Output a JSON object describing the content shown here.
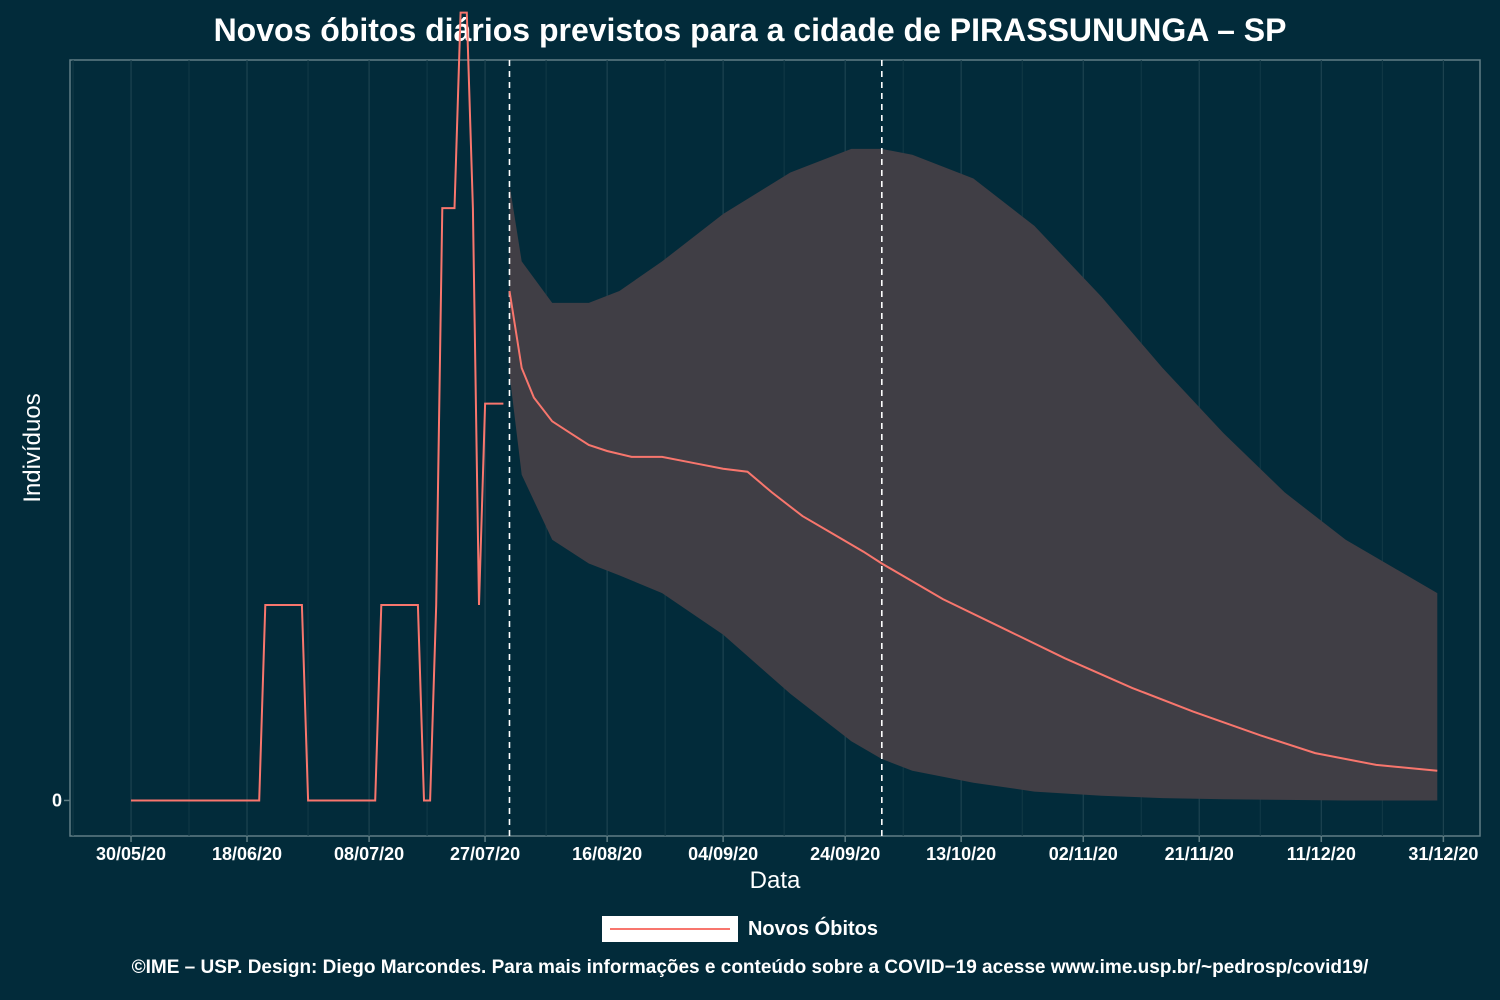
{
  "title": "Novos óbitos diários previstos para a cidade de PIRASSUNUNGA – SP",
  "footer": "©IME – USP. Design: Diego Marcondes. Para mais informações e conteúdo sobre a COVID−19 acesse www.ime.usp.br/~pedrosp/covid19/",
  "legend": {
    "label": "Novos Óbitos"
  },
  "colors": {
    "background": "#022b3a",
    "line": "#f8766d",
    "band": "#403e45",
    "text": "#ffffff"
  },
  "chart_data": {
    "type": "line",
    "xlabel": "Data",
    "ylabel": "Indivíduos",
    "x_ticks": [
      "30/05/20",
      "18/06/20",
      "08/07/20",
      "27/07/20",
      "16/08/20",
      "04/09/20",
      "24/09/20",
      "13/10/20",
      "02/11/20",
      "21/11/20",
      "11/12/20",
      "31/12/20"
    ],
    "y_ticks": [
      "0"
    ],
    "x_range": [
      "2020-05-20",
      "2021-01-06"
    ],
    "y_range": [
      -0.06,
      1.25
    ],
    "vertical_reference_lines": [
      "2020-07-31",
      "2020-09-30"
    ],
    "grid": true,
    "legend_position": "bottom",
    "series": [
      {
        "name": "Novos Óbitos",
        "role": "observed",
        "x": [
          "2020-05-30",
          "2020-06-20",
          "2020-06-21",
          "2020-06-27",
          "2020-06-28",
          "2020-07-09",
          "2020-07-10",
          "2020-07-16",
          "2020-07-17",
          "2020-07-18",
          "2020-07-19",
          "2020-07-20",
          "2020-07-22",
          "2020-07-23",
          "2020-07-24",
          "2020-07-25",
          "2020-07-26",
          "2020-07-27",
          "2020-07-28",
          "2020-07-29",
          "2020-07-30"
        ],
        "y": [
          0,
          0,
          0.33,
          0.33,
          0,
          0,
          0.33,
          0.33,
          0,
          0,
          0.33,
          1,
          1,
          1.33,
          1.33,
          1,
          0.33,
          0.67,
          0.67,
          0.67,
          0.67
        ]
      },
      {
        "name": "Novos Óbitos",
        "role": "predicted",
        "x": [
          "2020-07-31",
          "2020-08-02",
          "2020-08-04",
          "2020-08-07",
          "2020-08-10",
          "2020-08-13",
          "2020-08-16",
          "2020-08-20",
          "2020-08-25",
          "2020-08-30",
          "2020-09-04",
          "2020-09-08",
          "2020-09-12",
          "2020-09-17",
          "2020-09-22",
          "2020-09-27",
          "2020-09-30",
          "2020-10-05",
          "2020-10-10",
          "2020-10-20",
          "2020-10-30",
          "2020-11-10",
          "2020-11-20",
          "2020-12-01",
          "2020-12-10",
          "2020-12-20",
          "2020-12-30"
        ],
        "y": [
          0.86,
          0.73,
          0.68,
          0.64,
          0.62,
          0.6,
          0.59,
          0.58,
          0.58,
          0.57,
          0.56,
          0.555,
          0.52,
          0.48,
          0.45,
          0.42,
          0.4,
          0.37,
          0.34,
          0.29,
          0.24,
          0.19,
          0.15,
          0.11,
          0.08,
          0.06,
          0.05
        ]
      }
    ],
    "band": {
      "name": "intervalo de previsão",
      "x": [
        "2020-07-31",
        "2020-08-02",
        "2020-08-07",
        "2020-08-13",
        "2020-08-18",
        "2020-08-25",
        "2020-09-04",
        "2020-09-15",
        "2020-09-25",
        "2020-09-30",
        "2020-10-05",
        "2020-10-15",
        "2020-10-25",
        "2020-11-05",
        "2020-11-15",
        "2020-11-25",
        "2020-12-05",
        "2020-12-15",
        "2020-12-30"
      ],
      "upper": [
        1.04,
        0.91,
        0.84,
        0.84,
        0.86,
        0.91,
        0.99,
        1.06,
        1.1,
        1.1,
        1.09,
        1.05,
        0.97,
        0.85,
        0.73,
        0.62,
        0.52,
        0.44,
        0.35
      ],
      "lower": [
        0.72,
        0.55,
        0.44,
        0.4,
        0.38,
        0.35,
        0.28,
        0.18,
        0.1,
        0.07,
        0.05,
        0.03,
        0.015,
        0.008,
        0.004,
        0.002,
        0.001,
        0,
        0
      ]
    }
  },
  "axes_style": {
    "y_tick_weight": "bold",
    "x_tick_weight": "bold"
  }
}
